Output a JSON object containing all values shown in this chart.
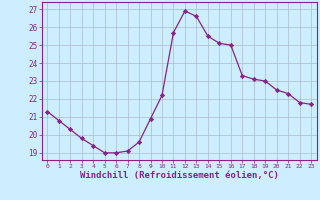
{
  "x": [
    0,
    1,
    2,
    3,
    4,
    5,
    6,
    7,
    8,
    9,
    10,
    11,
    12,
    13,
    14,
    15,
    16,
    17,
    18,
    19,
    20,
    21,
    22,
    23
  ],
  "y": [
    21.3,
    20.8,
    20.3,
    19.8,
    19.4,
    19.0,
    19.0,
    19.1,
    19.6,
    20.9,
    22.2,
    25.7,
    26.9,
    26.6,
    25.5,
    25.1,
    25.0,
    23.3,
    23.1,
    23.0,
    22.5,
    22.3,
    21.8,
    21.7
  ],
  "line_color": "#882288",
  "marker": "D",
  "marker_size": 2.2,
  "bg_color": "#cceeff",
  "grid_color": "#aabbcc",
  "xlabel": "Windchill (Refroidissement éolien,°C)",
  "xlabel_fontsize": 6.5,
  "ylabel_ticks": [
    19,
    20,
    21,
    22,
    23,
    24,
    25,
    26,
    27
  ],
  "xticks": [
    0,
    1,
    2,
    3,
    4,
    5,
    6,
    7,
    8,
    9,
    10,
    11,
    12,
    13,
    14,
    15,
    16,
    17,
    18,
    19,
    20,
    21,
    22,
    23
  ],
  "ylim": [
    18.6,
    27.4
  ],
  "xlim": [
    -0.5,
    23.5
  ]
}
